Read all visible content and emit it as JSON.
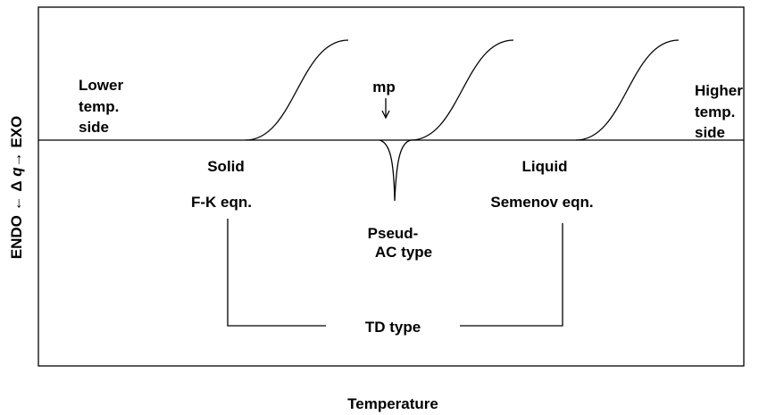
{
  "lower_side": [
    "Lower",
    "temp.",
    "side"
  ],
  "higher_side": [
    "Higher",
    "temp.",
    "side"
  ],
  "mp": "mp",
  "solid": {
    "phase": "Solid",
    "equation": "F-K eqn."
  },
  "liquid": {
    "phase": "Liquid",
    "equation": "Semenov eqn."
  },
  "pseudo_ac": [
    "Pseud-",
    "AC type"
  ],
  "td_type": "TD type",
  "y_axis_label": [
    "ENDO ← Δ ",
    "q",
    "→ EXO"
  ],
  "x_axis_label": "Temperature"
}
